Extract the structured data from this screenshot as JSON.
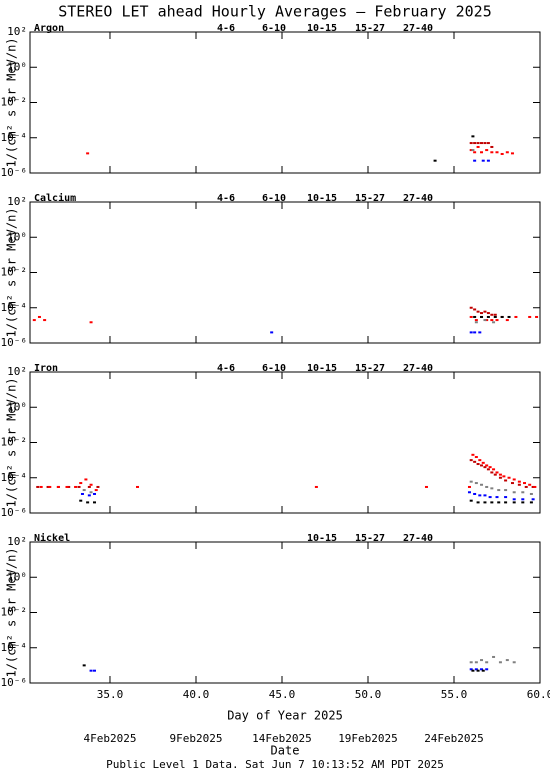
{
  "title": "STEREO LET ahead Hourly Averages – February 2025",
  "footer": "Public Level 1 Data. Sat Jun  7 10:13:52 AM PDT 2025",
  "chart_data": [
    {
      "type": "scatter",
      "panel_label": "Argon",
      "ylabel": "1/(cm² s sr MeV/n)",
      "log_y": true,
      "xlim": [
        30.35,
        60
      ],
      "xticks": [
        35,
        40,
        45,
        50,
        55,
        60
      ],
      "ylim": [
        1e-06,
        100
      ],
      "yticks": [
        {
          "value": 100,
          "label": "10²"
        },
        {
          "value": 1,
          "label": "10⁰"
        },
        {
          "value": 0.01,
          "label": "10⁻²"
        },
        {
          "value": 0.0001,
          "label": "10⁻⁴"
        },
        {
          "value": 1e-06,
          "label": "10⁻⁶"
        }
      ],
      "series": [
        {
          "name": "4-6",
          "color": "#c00000",
          "x": [
            56.0,
            56.2,
            56.4,
            56.6,
            56.8,
            57.0,
            57.2
          ],
          "values": [
            5e-05,
            5e-05,
            5e-05,
            5e-05,
            5e-05,
            5e-05,
            3e-05
          ]
        },
        {
          "name": "6-10",
          "color": "#ff0000",
          "x": [
            33.7,
            56.0,
            56.2,
            56.4,
            56.6,
            56.9,
            57.2,
            57.5,
            57.8,
            58.1,
            58.4
          ],
          "values": [
            1.3e-05,
            2e-05,
            1.5e-05,
            3e-05,
            1.5e-05,
            2e-05,
            1.5e-05,
            1.5e-05,
            1.2e-05,
            1.5e-05,
            1.3e-05
          ]
        },
        {
          "name": "10-15",
          "color": "#808080",
          "x": [
            56.1
          ],
          "values": [
            2e-05
          ]
        },
        {
          "name": "15-27",
          "color": "#0000ff",
          "x": [
            56.2,
            56.7,
            57.0
          ],
          "values": [
            5e-06,
            5e-06,
            5e-06
          ]
        },
        {
          "name": "27-40",
          "color": "#000000",
          "x": [
            53.9,
            56.1
          ],
          "values": [
            5e-06,
            0.00012
          ]
        }
      ]
    },
    {
      "type": "scatter",
      "panel_label": "Calcium",
      "ylabel": "1/(cm² s sr MeV/n)",
      "log_y": true,
      "xlim": [
        30.35,
        60
      ],
      "xticks": [
        35,
        40,
        45,
        50,
        55,
        60
      ],
      "ylim": [
        1e-06,
        100
      ],
      "yticks": [
        {
          "value": 100,
          "label": "10²"
        },
        {
          "value": 1,
          "label": "10⁰"
        },
        {
          "value": 0.01,
          "label": "10⁻²"
        },
        {
          "value": 0.0001,
          "label": "10⁻⁴"
        },
        {
          "value": 1e-06,
          "label": "10⁻⁶"
        }
      ],
      "series": [
        {
          "name": "4-6",
          "color": "#c00000",
          "x": [
            56.0,
            56.2,
            56.4,
            56.6,
            56.8,
            57.0,
            57.2,
            57.4
          ],
          "values": [
            0.0001,
            8e-05,
            6e-05,
            5e-05,
            6e-05,
            5e-05,
            4e-05,
            4e-05
          ]
        },
        {
          "name": "6-10",
          "color": "#ff0000",
          "x": [
            30.6,
            30.9,
            31.2,
            33.9,
            56.0,
            56.3,
            56.6,
            56.9,
            57.2,
            57.5,
            57.8,
            58.1,
            58.6,
            59.4,
            59.8
          ],
          "values": [
            2e-05,
            3e-05,
            2e-05,
            1.5e-05,
            3e-05,
            2e-05,
            3e-05,
            2e-05,
            2e-05,
            2e-05,
            3e-05,
            2e-05,
            3e-05,
            3e-05,
            3e-05
          ]
        },
        {
          "name": "10-15",
          "color": "#808080",
          "x": [
            56.3,
            56.8,
            57.3
          ],
          "values": [
            1.5e-05,
            2e-05,
            1.5e-05
          ]
        },
        {
          "name": "15-27",
          "color": "#0000ff",
          "x": [
            44.4,
            56.0,
            56.2,
            56.5
          ],
          "values": [
            4e-06,
            4e-06,
            4e-06,
            4e-06
          ]
        },
        {
          "name": "27-40",
          "color": "#000000",
          "x": [
            56.2,
            56.6,
            57.0,
            57.4,
            57.8,
            58.2
          ],
          "values": [
            3e-05,
            3e-05,
            3e-05,
            3e-05,
            3e-05,
            3e-05
          ]
        }
      ]
    },
    {
      "type": "scatter",
      "panel_label": "Iron",
      "ylabel": "1/(cm² s sr MeV/n)",
      "log_y": true,
      "xlim": [
        30.35,
        60
      ],
      "xticks": [
        35,
        40,
        45,
        50,
        55,
        60
      ],
      "ylim": [
        1e-06,
        100
      ],
      "yticks": [
        {
          "value": 100,
          "label": "10²"
        },
        {
          "value": 1,
          "label": "10⁰"
        },
        {
          "value": 0.01,
          "label": "10⁻²"
        },
        {
          "value": 0.0001,
          "label": "10⁻⁴"
        },
        {
          "value": 1e-06,
          "label": "10⁻⁶"
        }
      ],
      "series": [
        {
          "name": "4-6",
          "color": "#c00000",
          "x": [
            30.8,
            31.4,
            32.0,
            32.6,
            33.2,
            33.8,
            34.3,
            56.0,
            56.2,
            56.4,
            56.6,
            56.8,
            57.0,
            57.2,
            57.4,
            57.7,
            58.0,
            58.4,
            58.8,
            59.2,
            59.6
          ],
          "values": [
            3e-05,
            3e-05,
            3e-05,
            3e-05,
            3e-05,
            3e-05,
            3e-05,
            0.001,
            0.0008,
            0.0006,
            0.0005,
            0.0004,
            0.0003,
            0.0002,
            0.00015,
            0.0001,
            7e-05,
            5e-05,
            4e-05,
            3e-05,
            3e-05
          ]
        },
        {
          "name": "6-10",
          "color": "#ff0000",
          "x": [
            31.0,
            31.5,
            32.0,
            32.5,
            33.0,
            33.3,
            33.6,
            33.9,
            34.2,
            36.6,
            47.0,
            53.4,
            55.9,
            56.1,
            56.3,
            56.5,
            56.7,
            56.9,
            57.1,
            57.3,
            57.5,
            57.7,
            57.9,
            58.2,
            58.5,
            58.8,
            59.1,
            59.4,
            59.7
          ],
          "values": [
            3e-05,
            3e-05,
            3e-05,
            3e-05,
            3e-05,
            5e-05,
            8e-05,
            4e-05,
            2e-05,
            3e-05,
            3e-05,
            3e-05,
            3e-05,
            0.002,
            0.0015,
            0.001,
            0.0007,
            0.0005,
            0.0004,
            0.0003,
            0.0002,
            0.00015,
            0.00012,
            0.0001,
            8e-05,
            6e-05,
            5e-05,
            4e-05,
            3e-05
          ]
        },
        {
          "name": "10-15",
          "color": "#808080",
          "x": [
            33.5,
            33.9,
            56.0,
            56.3,
            56.6,
            56.9,
            57.2,
            57.6,
            58.0,
            58.5,
            59.0,
            59.5
          ],
          "values": [
            2e-05,
            1.5e-05,
            6e-05,
            5e-05,
            4e-05,
            3e-05,
            2.5e-05,
            2e-05,
            2e-05,
            1.5e-05,
            1.5e-05,
            1.2e-05
          ]
        },
        {
          "name": "15-27",
          "color": "#0000ff",
          "x": [
            33.4,
            33.8,
            34.1,
            55.9,
            56.2,
            56.5,
            56.8,
            57.1,
            57.5,
            58.0,
            58.5,
            59.0,
            59.6
          ],
          "values": [
            1.2e-05,
            1e-05,
            1.2e-05,
            1.5e-05,
            1.2e-05,
            1e-05,
            1e-05,
            8e-06,
            8e-06,
            8e-06,
            6e-06,
            6e-06,
            6e-06
          ]
        },
        {
          "name": "27-40",
          "color": "#000000",
          "x": [
            33.3,
            33.7,
            34.1,
            56.0,
            56.4,
            56.8,
            57.2,
            57.6,
            58.0,
            58.5,
            59.0,
            59.5
          ],
          "values": [
            5e-06,
            4e-06,
            4e-06,
            5e-06,
            4e-06,
            4e-06,
            4e-06,
            4e-06,
            4e-06,
            4e-06,
            4e-06,
            4e-06
          ]
        }
      ]
    },
    {
      "type": "scatter",
      "panel_label": "Nickel",
      "ylabel": "1/(cm² s sr MeV/n)",
      "log_y": true,
      "xlim": [
        30.35,
        60
      ],
      "xticks": [
        {
          "value": 35,
          "label": "35.0"
        },
        {
          "value": 40,
          "label": "40.0"
        },
        {
          "value": 45,
          "label": "45.0"
        },
        {
          "value": 50,
          "label": "50.0"
        },
        {
          "value": 55,
          "label": "55.0"
        },
        {
          "value": 60,
          "label": "60.0"
        }
      ],
      "xlabel": "Day of Year 2025",
      "date_ticks": [
        {
          "value": 35,
          "label": "4Feb2025"
        },
        {
          "value": 40,
          "label": "9Feb2025"
        },
        {
          "value": 45,
          "label": "14Feb2025"
        },
        {
          "value": 50,
          "label": "19Feb2025"
        },
        {
          "value": 55,
          "label": "24Feb2025"
        }
      ],
      "date_label": "Date",
      "ylim": [
        1e-06,
        100
      ],
      "yticks": [
        {
          "value": 100,
          "label": "10²"
        },
        {
          "value": 1,
          "label": "10⁰"
        },
        {
          "value": 0.01,
          "label": "10⁻²"
        },
        {
          "value": 0.0001,
          "label": "10⁻⁴"
        },
        {
          "value": 1e-06,
          "label": "10⁻⁶"
        }
      ],
      "series": [
        {
          "name": "10-15",
          "color": "#808080",
          "x": [
            56.0,
            56.3,
            56.6,
            56.9,
            57.3,
            57.7,
            58.1,
            58.5
          ],
          "values": [
            1.5e-05,
            1.5e-05,
            2e-05,
            1.5e-05,
            3e-05,
            1.5e-05,
            2e-05,
            1.5e-05
          ]
        },
        {
          "name": "15-27",
          "color": "#0000ff",
          "x": [
            33.9,
            34.1,
            56.0,
            56.3,
            56.6,
            56.9
          ],
          "values": [
            5e-06,
            5e-06,
            6e-06,
            6e-06,
            6e-06,
            6e-06
          ]
        },
        {
          "name": "27-40",
          "color": "#000000",
          "x": [
            33.5,
            56.1,
            56.4,
            56.7
          ],
          "values": [
            1e-05,
            5e-06,
            5e-06,
            5e-06
          ]
        }
      ]
    }
  ]
}
